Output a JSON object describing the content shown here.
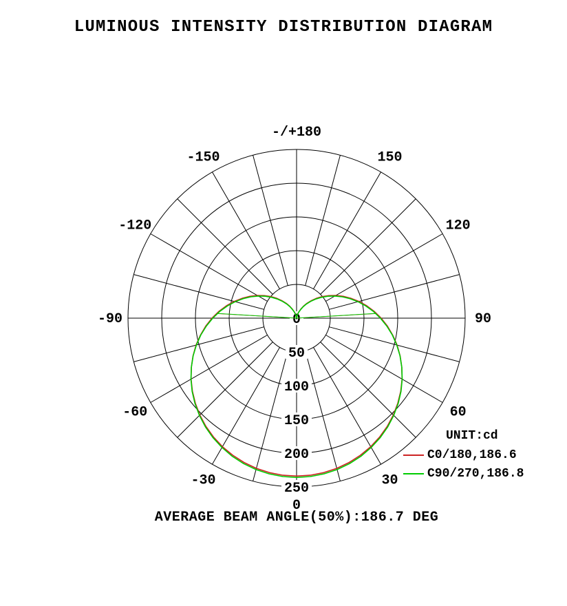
{
  "title": "LUMINOUS INTENSITY DISTRIBUTION DIAGRAM",
  "caption": "AVERAGE BEAM ANGLE(50%):186.7 DEG",
  "legend": {
    "unit_label": "UNIT:cd",
    "entries": [
      {
        "label": "C0/180,186.6",
        "color": "#cc2222"
      },
      {
        "label": "C90/270,186.8",
        "color": "#00cc00"
      }
    ]
  },
  "chart_data": {
    "type": "polar-line",
    "unit": "cd",
    "orientation": "0 degrees at bottom (nadir), 180 at top, positive angles right / negative left",
    "radial_max": 250,
    "ring_step": 50,
    "spoke_step_deg": 15,
    "radial_ticks": [
      0,
      50,
      100,
      150,
      200,
      250
    ],
    "angle_ticks": [
      {
        "deg": 180,
        "label": "-/+180"
      },
      {
        "deg": 150,
        "label": "150"
      },
      {
        "deg": 120,
        "label": "120"
      },
      {
        "deg": 90,
        "label": "90"
      },
      {
        "deg": 60,
        "label": "60"
      },
      {
        "deg": 30,
        "label": "30"
      },
      {
        "deg": 0,
        "label": "0"
      },
      {
        "deg": -30,
        "label": "-30"
      },
      {
        "deg": -60,
        "label": "-60"
      },
      {
        "deg": -90,
        "label": "-90"
      },
      {
        "deg": -120,
        "label": "-120"
      },
      {
        "deg": -150,
        "label": "-150"
      }
    ],
    "beam_angle_avg_deg": 186.7,
    "series": [
      {
        "name": "C0/180",
        "beam_angle_deg": 186.6,
        "color": "#cc2222",
        "angles_deg": [
          0,
          5,
          10,
          15,
          20,
          25,
          30,
          35,
          40,
          45,
          50,
          55,
          60,
          65,
          70,
          75,
          80,
          85,
          90,
          95,
          100,
          105,
          110,
          115,
          120,
          125,
          130,
          135,
          140,
          145,
          150,
          155,
          160,
          165,
          170,
          175,
          180
        ],
        "values_cd": [
          234,
          233.6,
          232.4,
          230.4,
          227.6,
          224.1,
          219.9,
          214.9,
          209.2,
          202.9,
          196.0,
          188.6,
          180.6,
          172.2,
          163.4,
          154.3,
          144.8,
          135.2,
          125.4,
          115.5,
          105.6,
          95.8,
          85.9,
          76.5,
          67.2,
          58.2,
          49.7,
          41.5,
          33.9,
          26.9,
          20.6,
          14.9,
          10.0,
          6.0,
          2.9,
          0.8,
          0
        ]
      },
      {
        "name": "C90/270",
        "beam_angle_deg": 186.8,
        "color": "#00cc00",
        "angles_deg": [
          0,
          5,
          10,
          15,
          20,
          25,
          30,
          35,
          40,
          45,
          50,
          55,
          60,
          65,
          70,
          75,
          80,
          85,
          90,
          95,
          100,
          105,
          110,
          115,
          120,
          125,
          130,
          135,
          140,
          145,
          150,
          155,
          160,
          165,
          170,
          175,
          180
        ],
        "values_cd": [
          236,
          235.6,
          234.3,
          232.3,
          229.4,
          225.8,
          221.3,
          216.2,
          210.3,
          203.8,
          196.7,
          189.1,
          180.9,
          172.2,
          163.2,
          153.8,
          144.2,
          134.3,
          124.3,
          114.3,
          104.2,
          94.2,
          84.4,
          74.8,
          65.5,
          56.5,
          48.0,
          39.9,
          32.4,
          25.6,
          19.4,
          13.9,
          9.3,
          5.5,
          2.6,
          0.7,
          0
        ]
      }
    ]
  }
}
